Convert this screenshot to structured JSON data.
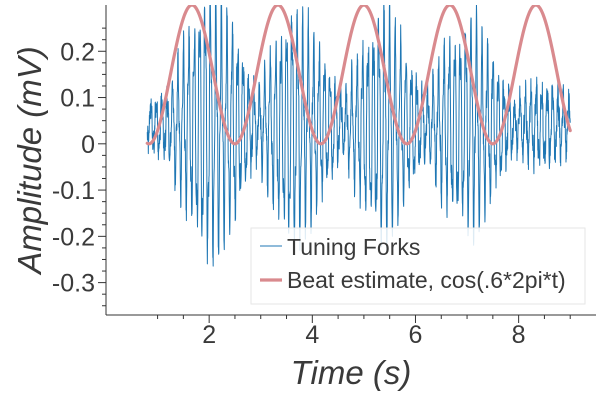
{
  "chart_data": {
    "type": "line",
    "title": "",
    "xlabel": "Time (s)",
    "ylabel": "Amplitude (mV)",
    "xlim": [
      0.0,
      9.5
    ],
    "ylim": [
      -0.37,
      0.3
    ],
    "x_ticks": [
      {
        "value": 2,
        "label": "2"
      },
      {
        "value": 4,
        "label": "4"
      },
      {
        "value": 6,
        "label": "6"
      },
      {
        "value": 8,
        "label": "8"
      }
    ],
    "y_ticks": [
      {
        "value": 0.2,
        "label": "0.2"
      },
      {
        "value": 0.1,
        "label": "0.1"
      },
      {
        "value": 0.0,
        "label": "0"
      },
      {
        "value": -0.1,
        "label": "-0.1"
      },
      {
        "value": -0.2,
        "label": "-0.2"
      },
      {
        "value": -0.3,
        "label": "-0.3"
      }
    ],
    "grid": false,
    "legend_position": "bottom-right",
    "series": [
      {
        "name": "Tuning Forks",
        "color": "#1f77b4",
        "style": "thin-line",
        "t_range": [
          0.8,
          9.0
        ],
        "carrier_frequency_hz": 9.5,
        "offset": 0.04,
        "amplitude_envelope": [
          {
            "t": 0.8,
            "amplitude": 0.04
          },
          {
            "t": 1.2,
            "amplitude": 0.06
          },
          {
            "t": 1.6,
            "amplitude": 0.17
          },
          {
            "t": 2.0,
            "amplitude": 0.25
          },
          {
            "t": 2.4,
            "amplitude": 0.2
          },
          {
            "t": 2.9,
            "amplitude": 0.06
          },
          {
            "t": 3.2,
            "amplitude": 0.13
          },
          {
            "t": 3.6,
            "amplitude": 0.22
          },
          {
            "t": 4.0,
            "amplitude": 0.17
          },
          {
            "t": 4.6,
            "amplitude": 0.05
          },
          {
            "t": 4.9,
            "amplitude": 0.13
          },
          {
            "t": 5.4,
            "amplitude": 0.22
          },
          {
            "t": 5.8,
            "amplitude": 0.14
          },
          {
            "t": 6.2,
            "amplitude": 0.05
          },
          {
            "t": 6.6,
            "amplitude": 0.15
          },
          {
            "t": 7.1,
            "amplitude": 0.2
          },
          {
            "t": 7.5,
            "amplitude": 0.13
          },
          {
            "t": 7.9,
            "amplitude": 0.04
          },
          {
            "t": 8.4,
            "amplitude": 0.08
          },
          {
            "t": 9.0,
            "amplitude": 0.05
          }
        ]
      },
      {
        "name": "Beat estimate, cos(.6*2pi*t)",
        "color": "#d98a8e",
        "style": "thick-line",
        "t_range": [
          0.8,
          9.0
        ],
        "formula": "0.15 + 0.15*cos(0.6*2*pi*t)",
        "amplitude": 0.15,
        "offset": 0.15,
        "frequency_hz": 0.6
      }
    ]
  }
}
